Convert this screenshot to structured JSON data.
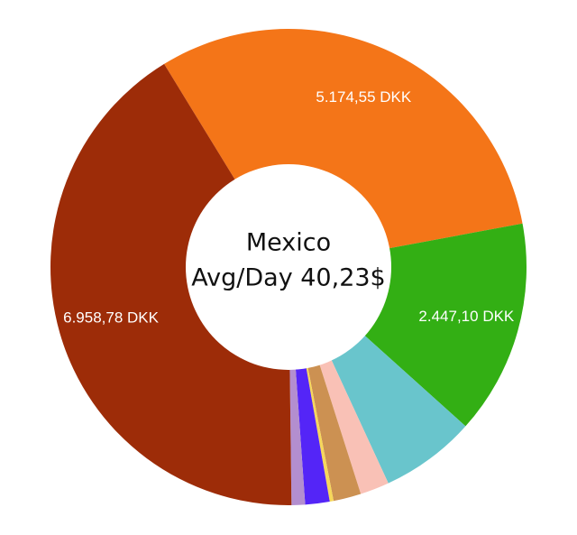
{
  "chart_data": {
    "type": "pie",
    "center": {
      "line1": "Mexico",
      "line2": "Avg/Day 40,23$"
    },
    "slices": [
      {
        "value": 5174.55,
        "label": "5.174,55 DKK",
        "color": "#F47518"
      },
      {
        "value": 2447.1,
        "label": "2.447,10 DKK",
        "color": "#33AF14"
      },
      {
        "value": 1085.0,
        "label": "",
        "color": "#69C5CC"
      },
      {
        "value": 332.0,
        "label": "",
        "color": "#F9C1B6"
      },
      {
        "value": 315.0,
        "label": "",
        "color": "#CC9152"
      },
      {
        "value": 44.0,
        "label": "",
        "color": "#F6D75A"
      },
      {
        "value": 278.0,
        "label": "",
        "color": "#5425F7"
      },
      {
        "value": 154.0,
        "label": "",
        "color": "#B38ECF"
      },
      {
        "value": 6958.78,
        "label": "6.958,78 DKK",
        "color": "#9D2C08"
      }
    ]
  }
}
